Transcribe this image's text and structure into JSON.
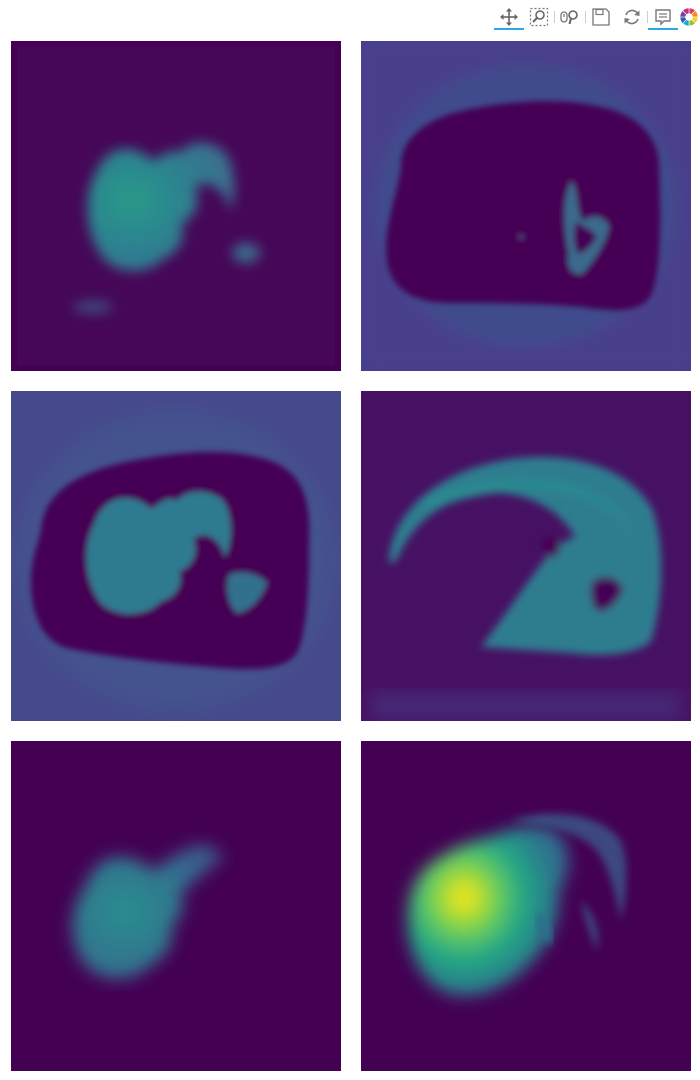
{
  "toolbar": {
    "tools": [
      {
        "id": "pan",
        "icon": "move-icon",
        "active": true
      },
      {
        "id": "box_zoom",
        "icon": "box-zoom-icon",
        "active": false
      },
      {
        "id": "wheel_zoom",
        "icon": "wheel-zoom-icon",
        "active": false
      },
      {
        "id": "save",
        "icon": "save-icon",
        "active": false
      },
      {
        "id": "reset",
        "icon": "reset-icon",
        "active": false
      },
      {
        "id": "hover",
        "icon": "hover-icon",
        "active": true
      }
    ],
    "logo": "bokeh-logo-icon",
    "accent": "#26aae1"
  },
  "colormap": {
    "name": "viridis",
    "background": "#440154",
    "low": "#471163",
    "mid_low": "#3b528b",
    "mid": "#21918c",
    "mid_high": "#5ec962",
    "high": "#fde725"
  },
  "panels": [
    {
      "row": 0,
      "col": 0,
      "content": "heart-organ-only"
    },
    {
      "row": 0,
      "col": 1,
      "content": "chest-outline"
    },
    {
      "row": 1,
      "col": 0,
      "content": "chest-with-heart"
    },
    {
      "row": 1,
      "col": 1,
      "content": "lung-crescent"
    },
    {
      "row": 2,
      "col": 0,
      "content": "heart-faint"
    },
    {
      "row": 2,
      "col": 1,
      "content": "heart-hotspot"
    }
  ]
}
